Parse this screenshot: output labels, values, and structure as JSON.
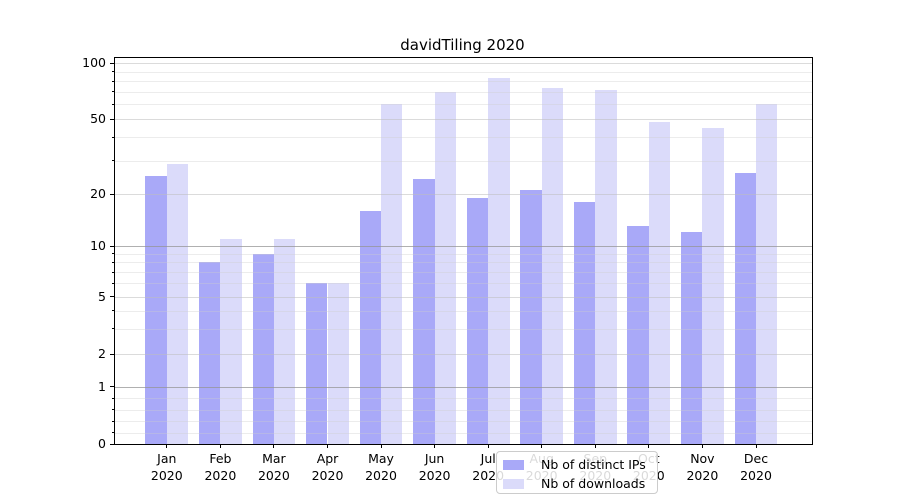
{
  "chart_data": {
    "type": "bar",
    "title": "davidTiling 2020",
    "categories": [
      "Jan 2020",
      "Feb 2020",
      "Mar 2020",
      "Apr 2020",
      "May 2020",
      "Jun 2020",
      "Jul 2020",
      "Aug 2020",
      "Sep 2020",
      "Oct 2020",
      "Nov 2020",
      "Dec 2020"
    ],
    "x_tick_month_line": [
      "Jan",
      "Feb",
      "Mar",
      "Apr",
      "May",
      "Jun",
      "Jul",
      "Aug",
      "Sep",
      "Oct",
      "Nov",
      "Dec"
    ],
    "x_tick_year_line": "2020",
    "series": [
      {
        "name": "Nb of distinct IPs",
        "color": "#a9a9f8",
        "values": [
          25,
          8,
          9,
          6,
          16,
          24,
          19,
          21,
          18,
          13,
          12,
          26
        ]
      },
      {
        "name": "Nb of downloads",
        "color": "#dbdbfa",
        "values": [
          29,
          11,
          11,
          6,
          60,
          70,
          83,
          73,
          72,
          48,
          45,
          60
        ]
      }
    ],
    "y_axis": {
      "scale": "log-like with linear segment near zero",
      "tick_values": [
        0,
        1,
        2,
        5,
        10,
        20,
        50,
        100
      ],
      "tick_labels": [
        "0",
        "1",
        "2",
        "5",
        "10",
        "20",
        "50",
        "100"
      ],
      "decade_gridline_values": [
        1,
        10
      ],
      "mid_gridline_values": [
        2,
        5,
        20,
        50,
        100
      ],
      "minor_gridline_values": [
        0.2,
        0.4,
        0.6,
        0.8,
        3,
        4,
        6,
        7,
        8,
        9,
        30,
        40,
        60,
        70,
        80,
        90
      ],
      "ylim": [
        0,
        107
      ]
    },
    "grid": "horizontal",
    "legend": {
      "position": "lower center",
      "entries": [
        "Nb of distinct IPs",
        "Nb of downloads"
      ]
    }
  }
}
